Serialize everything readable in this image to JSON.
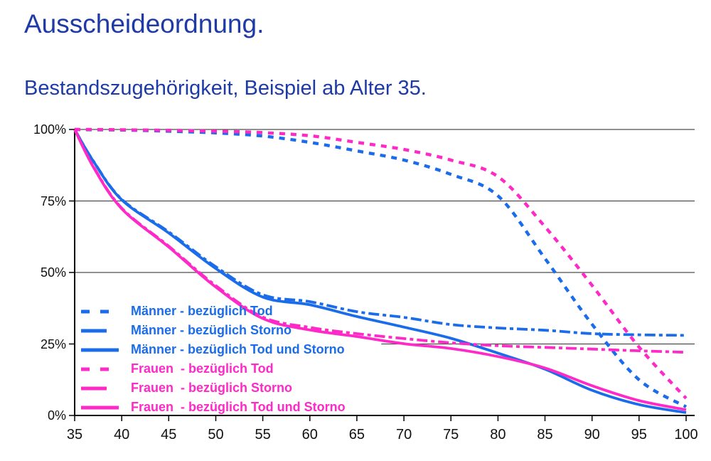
{
  "colors": {
    "heading": "#1e3aa6",
    "maenner_blue": "#1b6ceb",
    "frauen_pink": "#ff29c8",
    "axis": "#000000",
    "grid": "#4d4d4d",
    "tick_label": "#111111"
  },
  "chart_data": {
    "type": "line",
    "title": "Ausscheideordnung.",
    "subtitle": "Bestandszugehörigkeit, Beispiel ab Alter 35.",
    "xlabel": "",
    "ylabel": "",
    "xlim": [
      35,
      100
    ],
    "ylim": [
      0,
      100
    ],
    "grid_on": true,
    "x_ticks": [
      35,
      40,
      45,
      50,
      55,
      60,
      65,
      70,
      75,
      80,
      85,
      90,
      95,
      100
    ],
    "x_tick_labels": [
      "35",
      "40",
      "45",
      "50",
      "55",
      "60",
      "65",
      "70",
      "75",
      "80",
      "85",
      "90",
      "95",
      "100"
    ],
    "y_ticks": [
      {
        "value": 0,
        "label": "0%"
      },
      {
        "value": 25,
        "label": "25%"
      },
      {
        "value": 50,
        "label": "50%"
      },
      {
        "value": 75,
        "label": "75%"
      },
      {
        "value": 100,
        "label": "100%"
      }
    ],
    "grid_horizontal_lines": [
      {
        "percent": 100,
        "from_age": 35
      },
      {
        "percent": 75,
        "from_age": 35
      },
      {
        "percent": 50,
        "from_age": 35
      },
      {
        "percent": 25,
        "from_age": 67.6
      }
    ],
    "legend_position": "inside bottom-left",
    "x": [
      35,
      37,
      40,
      45,
      50,
      55,
      60,
      65,
      70,
      75,
      80,
      85,
      90,
      95,
      100
    ],
    "series": [
      {
        "name": "Männer - bezüglich Tod",
        "group": "maenner",
        "color": "#1b6ceb",
        "style": "dashed",
        "values": [
          100,
          99.9,
          99.8,
          99.4,
          98.8,
          97.7,
          95.5,
          92.5,
          89.3,
          84.3,
          76.8,
          54.9,
          31.9,
          12.5,
          3
        ]
      },
      {
        "name": "Männer - bezüglich Storno",
        "group": "maenner",
        "color": "#1b6ceb",
        "style": "dashdot",
        "values": [
          100,
          88.9,
          75.6,
          64.2,
          52.0,
          42.2,
          39.8,
          36.3,
          34.3,
          31.8,
          30.6,
          29.8,
          28.6,
          28.2,
          28.0
        ]
      },
      {
        "name": "Männer - bezüglich Tod und Storno",
        "group": "maenner",
        "color": "#1b6ceb",
        "style": "solid",
        "values": [
          100,
          88.8,
          75.4,
          63.8,
          51.4,
          41.4,
          38.7,
          34.6,
          30.9,
          27.0,
          21.8,
          16.2,
          8.8,
          3.8,
          1.0
        ]
      },
      {
        "name": "Frauen  - bezüglich Tod",
        "group": "frauen",
        "color": "#ff29c8",
        "style": "dashed",
        "values": [
          100,
          100,
          99.9,
          99.7,
          99.4,
          98.9,
          97.8,
          95.5,
          93.0,
          89.3,
          83.5,
          66.0,
          45.5,
          23.9,
          6.0
        ]
      },
      {
        "name": "Frauen  - bezüglich Storno",
        "group": "frauen",
        "color": "#ff29c8",
        "style": "dashdot",
        "values": [
          100,
          87.0,
          72.5,
          59.2,
          45.4,
          34.4,
          30.8,
          28.6,
          26.9,
          25.4,
          24.4,
          23.8,
          23.2,
          22.6,
          22.1
        ]
      },
      {
        "name": "Frauen  - bezüglich Tod und Storno",
        "group": "frauen",
        "color": "#ff29c8",
        "style": "solid",
        "values": [
          100,
          86.8,
          72.3,
          58.9,
          44.9,
          33.9,
          29.9,
          27.6,
          25.1,
          23.4,
          20.6,
          16.6,
          10.4,
          5.2,
          2.0
        ]
      }
    ]
  }
}
